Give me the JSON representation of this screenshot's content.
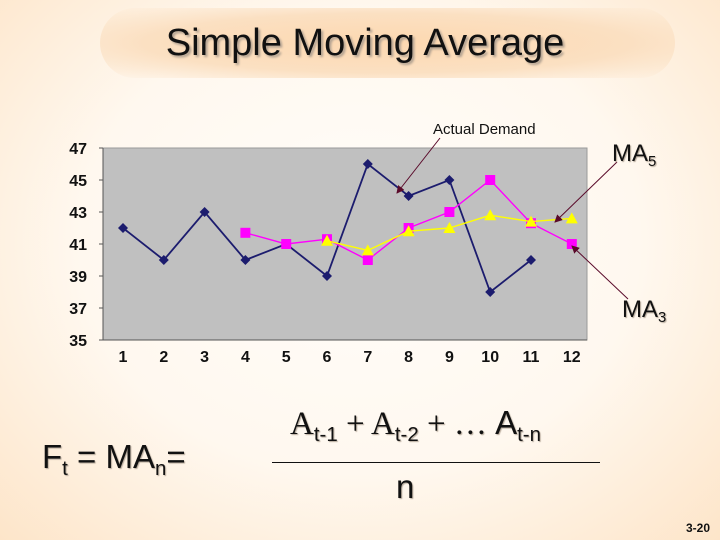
{
  "title": "Simple Moving Average",
  "chart_data": {
    "type": "line",
    "x": [
      1,
      2,
      3,
      4,
      5,
      6,
      7,
      8,
      9,
      10,
      11,
      12
    ],
    "ylim": [
      35,
      47
    ],
    "yticks": [
      35,
      37,
      39,
      41,
      43,
      45,
      47
    ],
    "grid": false,
    "background": "#c0c0c0",
    "series": [
      {
        "name": "Actual Demand",
        "color": "#1c1c6e",
        "marker": "diamond",
        "values": [
          42,
          40,
          43,
          40,
          41,
          39,
          46,
          44,
          45,
          38,
          40,
          null
        ]
      },
      {
        "name": "MA5",
        "color": "#ff00ff",
        "marker": "square",
        "values": [
          null,
          null,
          null,
          41.7,
          41.0,
          41.3,
          40.0,
          42.0,
          43.0,
          45.0,
          42.3,
          41.0
        ]
      },
      {
        "name": "MA3",
        "color": "#ffff00",
        "marker": "triangle",
        "values": [
          null,
          null,
          null,
          null,
          null,
          41.2,
          40.6,
          41.8,
          42.0,
          42.8,
          42.4,
          42.6
        ]
      }
    ]
  },
  "annotations": {
    "actual_demand": "Actual Demand",
    "ma5_base": "MA",
    "ma5_sub": "5",
    "ma3_base": "MA",
    "ma3_sub": "3"
  },
  "formula": {
    "lhs_f": "F",
    "lhs_t": "t",
    "lhs_mid": " = MA",
    "lhs_n": "n",
    "lhs_eq": "=",
    "num_a1": "A",
    "num_s1": "t-1",
    "num_plus1": " + ",
    "num_a2": "A",
    "num_s2": "t-2",
    "num_plus2": " + … ",
    "num_a3": "A",
    "num_s3": "t-n",
    "denominator": "n"
  },
  "slide_number": "3-20"
}
